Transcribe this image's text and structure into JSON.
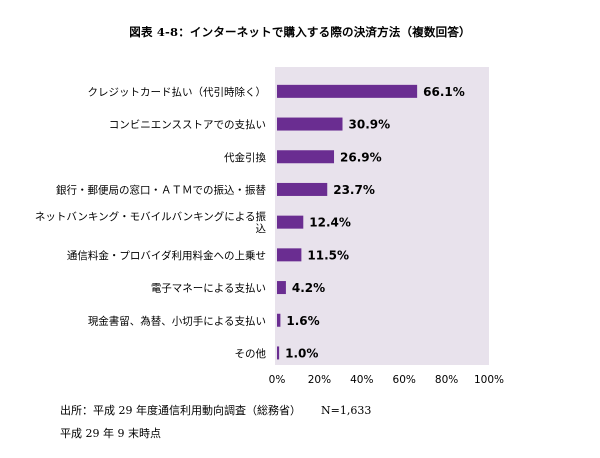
{
  "title": "図表 4-8：インターネットで購入する際の決済方法（複数回答）",
  "footnotes": {
    "source": "出所：平成 29 年度通信利用動向調査（総務省）",
    "n": "N=1,633",
    "date": "平成 29 年 9 末時点"
  },
  "colors": {
    "bar": "#6a2d91",
    "plot_bg": "#e8e2ec",
    "text": "#000000"
  },
  "chart_data": {
    "type": "bar",
    "orientation": "horizontal",
    "title": "図表 4-8：インターネットで購入する際の決済方法（複数回答）",
    "categories": [
      "クレジットカード払い（代引時除く）",
      "コンビニエンスストアでの支払い",
      "代金引換",
      "銀行・郵便局の窓口・ＡＴＭでの振込・振替",
      [
        "ネットバンキング・モバイルバンキングによる振",
        "込"
      ],
      "通信料金・プロバイダ利用料金への上乗せ",
      "電子マネーによる支払い",
      "現金書留、為替、小切手による支払い",
      "その他"
    ],
    "values": [
      66.1,
      30.9,
      26.9,
      23.7,
      12.4,
      11.5,
      4.2,
      1.6,
      1.0
    ],
    "value_labels": [
      "66.1%",
      "30.9%",
      "26.9%",
      "23.7%",
      "12.4%",
      "11.5%",
      "4.2%",
      "1.6%",
      "1.0%"
    ],
    "xlim": [
      0,
      100
    ],
    "x_ticks": [
      "0%",
      "20%",
      "40%",
      "60%",
      "80%",
      "100%"
    ],
    "grid": false,
    "legend": "none"
  }
}
